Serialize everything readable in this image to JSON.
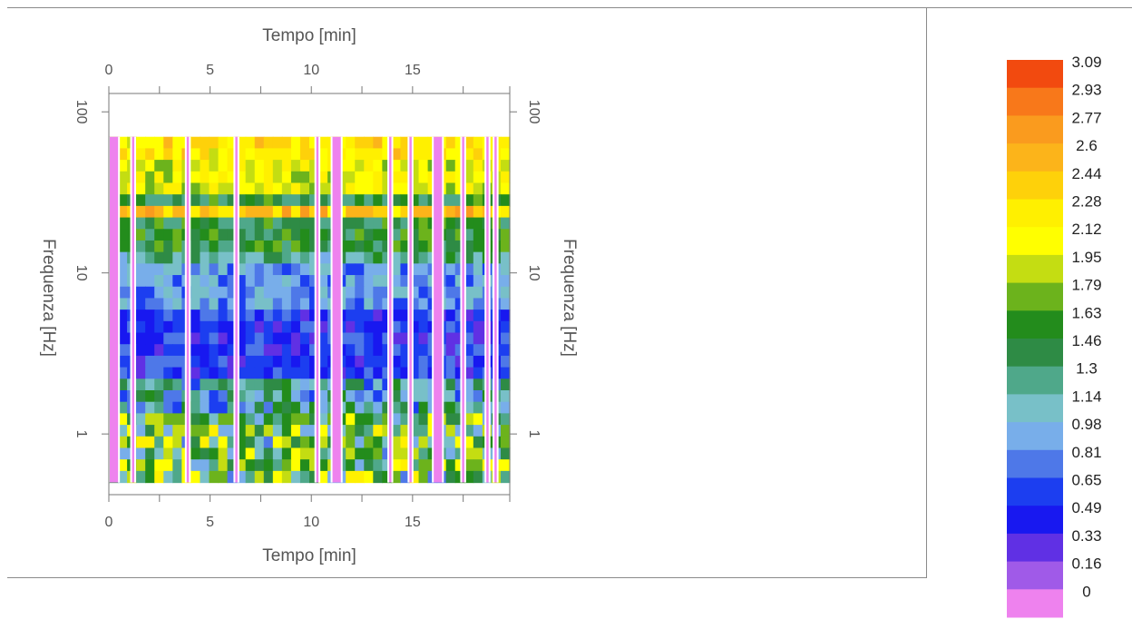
{
  "chart_data": {
    "type": "heatmap",
    "xlabel": "Tempo [min]",
    "ylabel": "Frequenza [Hz]",
    "x_ticks": [
      0,
      5,
      10,
      15
    ],
    "xlim": [
      0,
      19.8
    ],
    "y_scale": "log",
    "y_ticks": [
      1,
      10,
      100
    ],
    "ylim": [
      0.42,
      130
    ],
    "y_data_range": [
      0.5,
      70
    ],
    "colorbar": {
      "levels": [
        "3.09",
        "2.93",
        "2.77",
        "2.6",
        "2.44",
        "2.28",
        "2.12",
        "1.95",
        "1.79",
        "1.63",
        "1.46",
        "1.3",
        "1.14",
        "0.98",
        "0.81",
        "0.65",
        "0.49",
        "0.33",
        "0.16",
        "0"
      ],
      "colors": [
        "#f24a0f",
        "#f8781a",
        "#fa9b1e",
        "#fcb41a",
        "#fed10a",
        "#fff000",
        "#ffff00",
        "#c4dd12",
        "#6cb31c",
        "#238c1c",
        "#2e8b45",
        "#4fa88a",
        "#78c0c8",
        "#78aeea",
        "#4e78e8",
        "#1c3ef0",
        "#1818f0",
        "#6030e4",
        "#a05ae8",
        "#ee82ee"
      ]
    },
    "missing_bands": [
      [
        0.0,
        0.5
      ],
      [
        1.1,
        1.3
      ],
      [
        3.8,
        4.0
      ],
      [
        6.2,
        6.4
      ],
      [
        10.2,
        10.4
      ],
      [
        11.0,
        11.5
      ],
      [
        13.8,
        14.0
      ],
      [
        14.8,
        15.0
      ],
      [
        16.0,
        16.5
      ],
      [
        17.4,
        17.6
      ],
      [
        18.6,
        18.8
      ],
      [
        19.0,
        19.2
      ]
    ],
    "frequency_profile": [
      {
        "band": "50-70 Hz",
        "level": "2.28-2.77"
      },
      {
        "band": "30-50 Hz",
        "level": "1.95-2.28"
      },
      {
        "band": "22-30 Hz",
        "level": "2.44-3.09"
      },
      {
        "band": "15-22 Hz",
        "level": "1.63-1.95"
      },
      {
        "band": "5-15 Hz",
        "level": "0.81-1.14"
      },
      {
        "band": "2-5 Hz",
        "level": "0.49-0.98"
      },
      {
        "band": "0.5-2 Hz",
        "level": "1.14-2.60"
      }
    ]
  }
}
